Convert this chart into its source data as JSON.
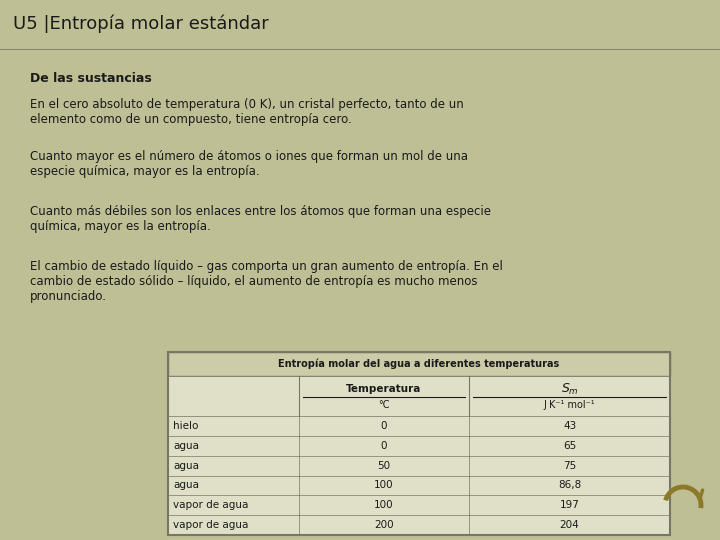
{
  "title": "U5 |Entropía molar estándar",
  "bg_header": "#BFBF96",
  "bg_body": "#BFBF96",
  "header_text_color": "#1A1A1A",
  "body_text_color": "#1A1A1A",
  "subtitle": "De las sustancias",
  "paragraphs": [
    "En el cero absoluto de temperatura (0 K), un cristal perfecto, tanto de un\nelemento como de un compuesto, tiene entropía cero.",
    "Cuanto mayor es el número de átomos o iones que forman un mol de una\nespecie química, mayor es la entropía.",
    "Cuanto más débiles son los enlaces entre los átomos que forman una especie\nquímica, mayor es la entropía.",
    "El cambio de estado líquido – gas comporta un gran aumento de entropía. En el\ncambio de estado sólido – líquido, el aumento de entropía es mucho menos\npronunciado."
  ],
  "table_title": "Entropía molar del agua a diferentes temperaturas",
  "table_col2_header": "Temperatura",
  "table_col2_subheader": "°C",
  "table_col3_header": "Sₘ",
  "table_col3_subheader": "J K⁻¹ mol⁻¹",
  "table_rows": [
    [
      "hielo",
      "0",
      "43"
    ],
    [
      "agua",
      "0",
      "65"
    ],
    [
      "agua",
      "50",
      "75"
    ],
    [
      "agua",
      "100",
      "86,8"
    ],
    [
      "vapor de agua",
      "100",
      "197"
    ],
    [
      "vapor de agua",
      "200",
      "204"
    ]
  ],
  "table_bg_light": "#E0E0C8",
  "table_bg_dark": "#CCCCA8",
  "table_title_bg": "#CCCCA8",
  "table_border": "#777766",
  "arrow_color": "#8B7A2A",
  "header_line_color": "#888870"
}
